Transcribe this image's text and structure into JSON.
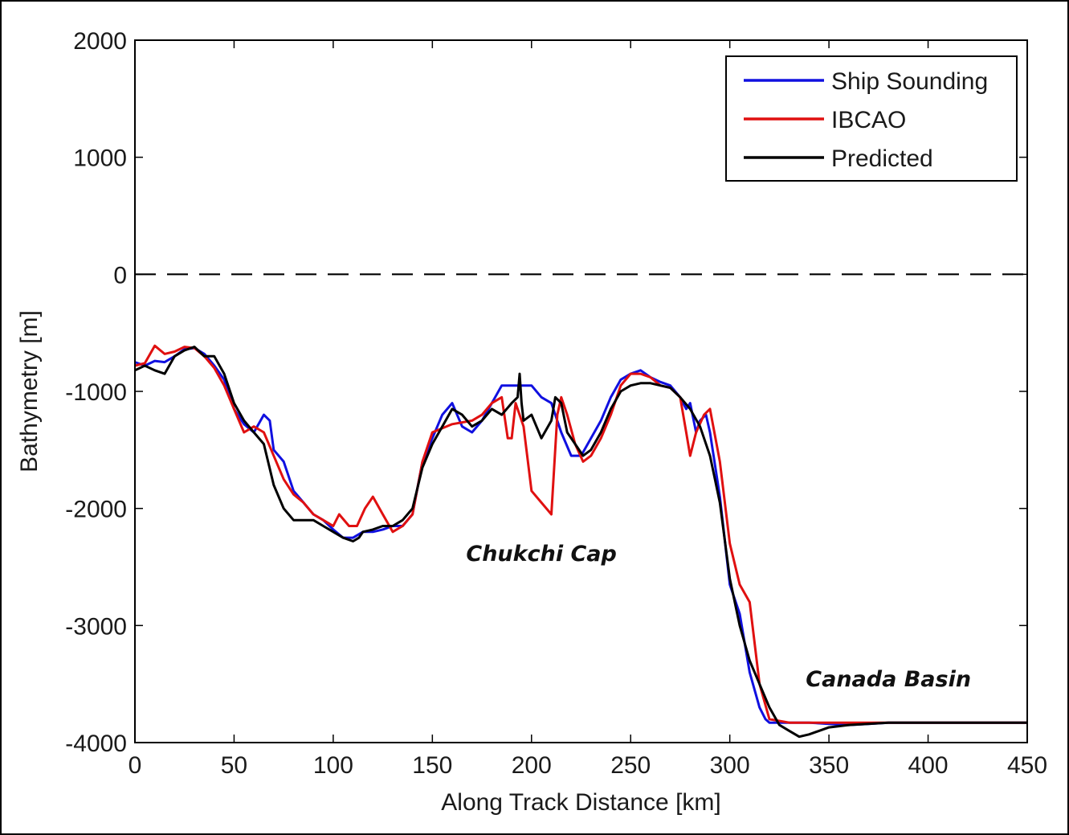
{
  "chart_data": {
    "type": "line",
    "xlabel": "Along Track Distance [km]",
    "ylabel": "Bathymetry [m]",
    "xlim": [
      0,
      450
    ],
    "ylim": [
      -4000,
      2000
    ],
    "xticks": [
      0,
      50,
      100,
      150,
      200,
      250,
      300,
      350,
      400,
      450
    ],
    "yticks": [
      -4000,
      -3000,
      -2000,
      -1000,
      0,
      1000,
      2000
    ],
    "reference_line": {
      "y": 0,
      "style": "dashed",
      "color": "#000000"
    },
    "legend_position": "top-right",
    "series": [
      {
        "name": "Ship Sounding",
        "color": "#1010e0",
        "x": [
          0,
          5,
          10,
          15,
          20,
          25,
          30,
          35,
          40,
          45,
          50,
          55,
          60,
          65,
          68,
          70,
          75,
          80,
          85,
          90,
          95,
          100,
          105,
          110,
          115,
          120,
          125,
          130,
          135,
          140,
          145,
          150,
          155,
          160,
          165,
          170,
          175,
          180,
          185,
          190,
          195,
          200,
          205,
          210,
          215,
          220,
          225,
          230,
          235,
          240,
          245,
          250,
          255,
          260,
          265,
          270,
          275,
          278,
          280,
          283,
          285,
          288,
          290,
          295,
          300,
          305,
          310,
          315,
          318,
          320,
          330,
          340,
          350,
          360,
          370,
          380,
          390,
          400,
          410,
          420,
          430,
          440,
          450
        ],
        "y": [
          -750,
          -780,
          -740,
          -750,
          -700,
          -640,
          -630,
          -680,
          -780,
          -900,
          -1150,
          -1280,
          -1350,
          -1200,
          -1250,
          -1500,
          -1600,
          -1850,
          -1950,
          -2050,
          -2100,
          -2180,
          -2250,
          -2250,
          -2200,
          -2200,
          -2180,
          -2150,
          -2150,
          -2050,
          -1600,
          -1400,
          -1200,
          -1100,
          -1300,
          -1350,
          -1250,
          -1100,
          -950,
          -950,
          -950,
          -950,
          -1050,
          -1100,
          -1350,
          -1550,
          -1550,
          -1400,
          -1250,
          -1050,
          -900,
          -850,
          -820,
          -880,
          -920,
          -950,
          -1050,
          -1150,
          -1100,
          -1350,
          -1250,
          -1200,
          -1350,
          -1900,
          -2650,
          -2900,
          -3400,
          -3700,
          -3800,
          -3830,
          -3830,
          -3830,
          -3840,
          -3850,
          -3840,
          -3830,
          -3830,
          -3830,
          -3830,
          -3830,
          -3830,
          -3830,
          -3830
        ]
      },
      {
        "name": "IBCAO",
        "color": "#e01010",
        "x": [
          0,
          5,
          10,
          15,
          20,
          25,
          30,
          35,
          40,
          45,
          50,
          55,
          60,
          65,
          70,
          75,
          80,
          85,
          90,
          95,
          100,
          103,
          108,
          112,
          116,
          120,
          125,
          130,
          135,
          140,
          145,
          150,
          160,
          170,
          175,
          180,
          185,
          188,
          190,
          192,
          196,
          200,
          205,
          210,
          213,
          215,
          218,
          222,
          226,
          230,
          235,
          240,
          245,
          250,
          255,
          260,
          265,
          270,
          275,
          278,
          280,
          283,
          287,
          290,
          295,
          300,
          305,
          310,
          315,
          320,
          330,
          340,
          350,
          360,
          380,
          400,
          420,
          450
        ],
        "y": [
          -780,
          -760,
          -610,
          -680,
          -660,
          -620,
          -630,
          -700,
          -800,
          -950,
          -1150,
          -1350,
          -1300,
          -1350,
          -1550,
          -1750,
          -1880,
          -1950,
          -2050,
          -2100,
          -2150,
          -2050,
          -2150,
          -2150,
          -2000,
          -1900,
          -2050,
          -2200,
          -2150,
          -2050,
          -1600,
          -1350,
          -1280,
          -1250,
          -1200,
          -1100,
          -1050,
          -1400,
          -1400,
          -1100,
          -1300,
          -1850,
          -1950,
          -2050,
          -1200,
          -1050,
          -1200,
          -1450,
          -1600,
          -1550,
          -1400,
          -1200,
          -950,
          -850,
          -850,
          -880,
          -950,
          -970,
          -1050,
          -1350,
          -1550,
          -1350,
          -1200,
          -1150,
          -1600,
          -2300,
          -2650,
          -2800,
          -3500,
          -3800,
          -3830,
          -3830,
          -3830,
          -3830,
          -3830,
          -3830,
          -3830,
          -3830
        ]
      },
      {
        "name": "Predicted",
        "color": "#000000",
        "x": [
          0,
          5,
          10,
          15,
          20,
          25,
          30,
          35,
          40,
          45,
          50,
          55,
          60,
          65,
          70,
          75,
          80,
          85,
          90,
          95,
          100,
          105,
          110,
          113,
          115,
          120,
          125,
          130,
          135,
          140,
          145,
          150,
          155,
          160,
          165,
          170,
          175,
          180,
          185,
          190,
          193,
          194,
          195,
          196,
          200,
          205,
          210,
          212,
          215,
          218,
          222,
          226,
          230,
          235,
          240,
          245,
          250,
          255,
          260,
          265,
          270,
          275,
          280,
          285,
          290,
          295,
          300,
          305,
          310,
          315,
          320,
          325,
          330,
          335,
          340,
          345,
          350,
          360,
          380,
          400,
          420,
          450
        ],
        "y": [
          -820,
          -780,
          -820,
          -850,
          -700,
          -650,
          -620,
          -700,
          -700,
          -850,
          -1100,
          -1250,
          -1350,
          -1450,
          -1800,
          -2000,
          -2100,
          -2100,
          -2100,
          -2150,
          -2200,
          -2250,
          -2280,
          -2250,
          -2200,
          -2180,
          -2150,
          -2150,
          -2100,
          -2000,
          -1650,
          -1450,
          -1300,
          -1150,
          -1200,
          -1300,
          -1250,
          -1150,
          -1200,
          -1100,
          -1050,
          -850,
          -1100,
          -1250,
          -1200,
          -1400,
          -1250,
          -1050,
          -1100,
          -1350,
          -1450,
          -1550,
          -1500,
          -1350,
          -1150,
          -1000,
          -950,
          -930,
          -930,
          -950,
          -970,
          -1050,
          -1150,
          -1300,
          -1550,
          -1950,
          -2600,
          -3000,
          -3300,
          -3500,
          -3700,
          -3850,
          -3900,
          -3950,
          -3930,
          -3900,
          -3870,
          -3850,
          -3830,
          -3830,
          -3830,
          -3830
        ]
      }
    ],
    "annotations": [
      {
        "text": "Chukchi Cap",
        "x": 205,
        "y": -2450
      },
      {
        "text": "Canada Basin",
        "x": 380,
        "y": -3520
      }
    ]
  }
}
